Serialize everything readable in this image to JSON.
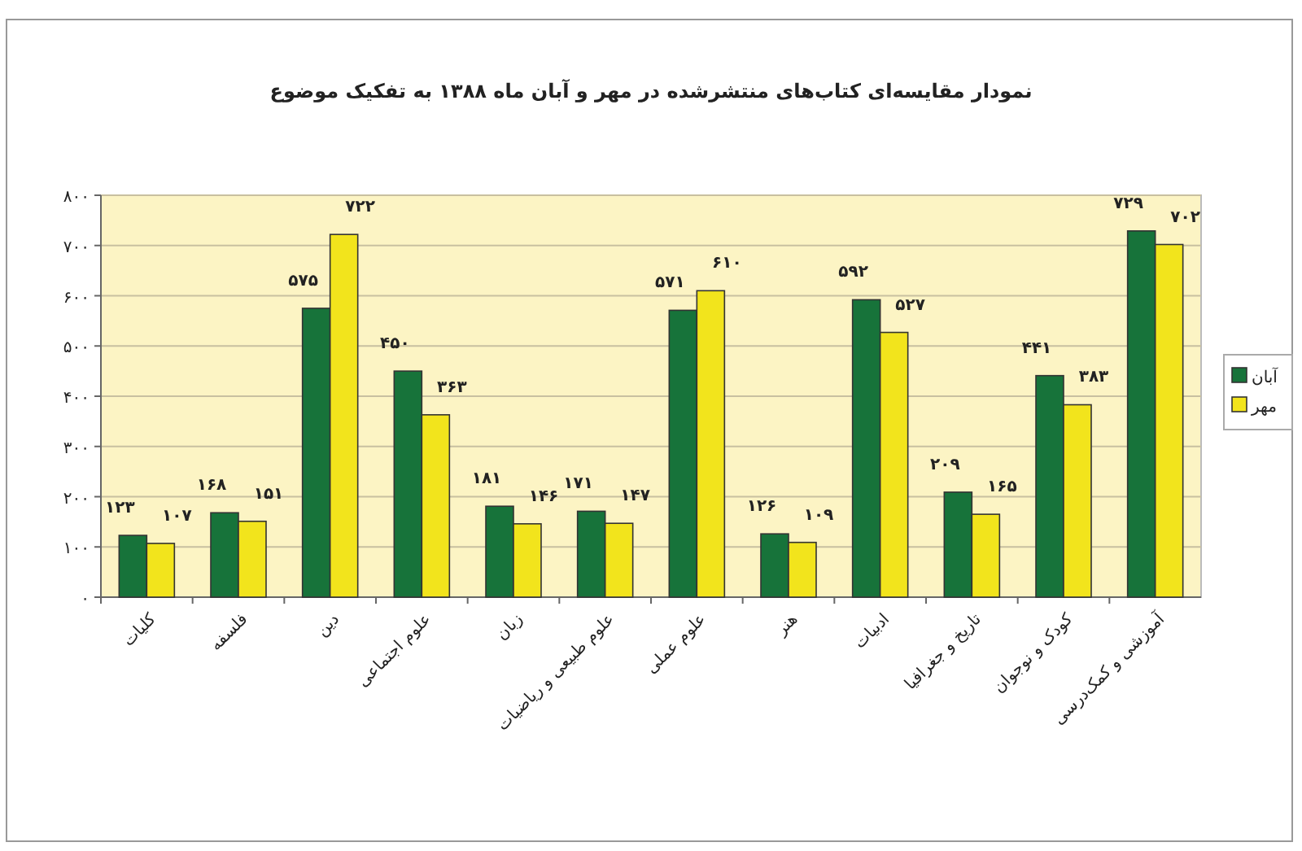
{
  "chart_data": {
    "type": "bar",
    "title": "نمودار مقایسه‌ای کتاب‌های منتشرشده در مهر و آبان ماه ۱۳۸۸ به تفکیک موضوع",
    "categories": [
      "کلیات",
      "فلسفه",
      "دین",
      "علوم اجتماعی",
      "زبان",
      "علوم طبیعی و ریاضیات",
      "علوم عملی",
      "هنر",
      "ادبیات",
      "تاریخ و جغرافیا",
      "کودک و نوجوان",
      "آموزشی و کمک‌درسی"
    ],
    "series": [
      {
        "name": "آبان",
        "color": "#17733a",
        "values": [
          123,
          168,
          575,
          450,
          181,
          171,
          571,
          126,
          592,
          209,
          441,
          729
        ],
        "value_labels": [
          "۱۲۳",
          "۱۶۸",
          "۵۷۵",
          "۴۵۰",
          "۱۸۱",
          "۱۷۱",
          "۵۷۱",
          "۱۲۶",
          "۵۹۲",
          "۲۰۹",
          "۴۴۱",
          "۷۲۹"
        ]
      },
      {
        "name": "مهر",
        "color": "#f2e41c",
        "values": [
          107,
          151,
          722,
          363,
          146,
          147,
          610,
          109,
          527,
          165,
          383,
          702
        ],
        "value_labels": [
          "۱۰۷",
          "۱۵۱",
          "۷۲۲",
          "۳۶۳",
          "۱۴۶",
          "۱۴۷",
          "۶۱۰",
          "۱۰۹",
          "۵۲۷",
          "۱۶۵",
          "۳۸۳",
          "۷۰۲"
        ]
      }
    ],
    "ylim": [
      0,
      800
    ],
    "yticks": [
      {
        "value": 0,
        "label": "۰"
      },
      {
        "value": 100,
        "label": "۱۰۰"
      },
      {
        "value": 200,
        "label": "۲۰۰"
      },
      {
        "value": 300,
        "label": "۳۰۰"
      },
      {
        "value": 400,
        "label": "۴۰۰"
      },
      {
        "value": 500,
        "label": "۵۰۰"
      },
      {
        "value": 600,
        "label": "۶۰۰"
      },
      {
        "value": 700,
        "label": "۷۰۰"
      },
      {
        "value": 800,
        "label": "۸۰۰"
      }
    ],
    "grid": "y",
    "legend": "right"
  }
}
